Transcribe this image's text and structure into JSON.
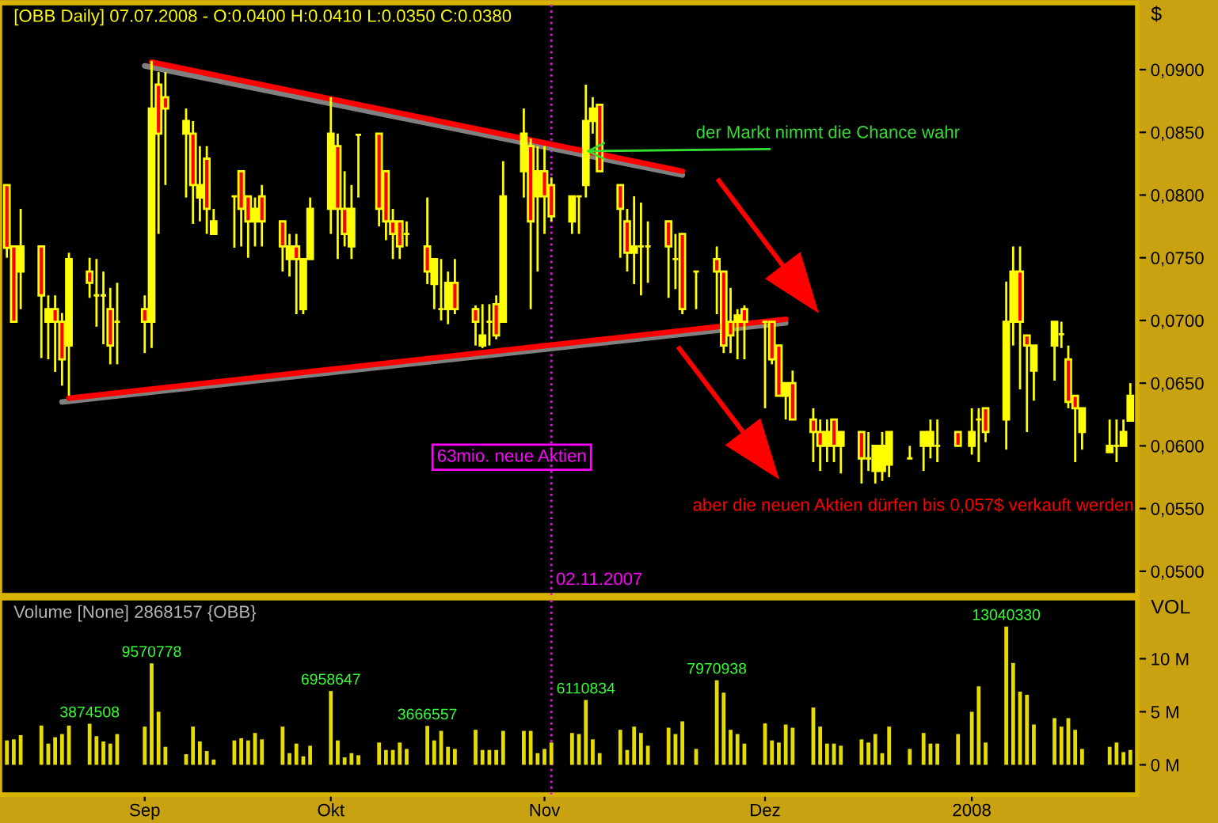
{
  "chart_data": [
    {
      "type": "candlestick",
      "title": "[OBB Daily] 07.07.2008 - O:0.0400 H:0.0410 L:0.0350 C:0.0380",
      "ylabel": "$",
      "x": [
        "2007-08-15",
        "2007-08-16",
        "2007-08-17",
        "2007-08-20",
        "2007-08-21",
        "2007-08-22",
        "2007-08-23",
        "2007-08-24",
        "2007-08-27",
        "2007-08-28",
        "2007-08-29",
        "2007-08-30",
        "2007-08-31",
        "2007-09-04",
        "2007-09-05",
        "2007-09-06",
        "2007-09-07",
        "2007-09-10",
        "2007-09-11",
        "2007-09-12",
        "2007-09-13",
        "2007-09-14",
        "2007-09-17",
        "2007-09-18",
        "2007-09-19",
        "2007-09-20",
        "2007-09-21",
        "2007-09-24",
        "2007-09-25",
        "2007-09-26",
        "2007-09-27",
        "2007-09-28",
        "2007-10-01",
        "2007-10-02",
        "2007-10-03",
        "2007-10-04",
        "2007-10-05",
        "2007-10-08",
        "2007-10-09",
        "2007-10-10",
        "2007-10-11",
        "2007-10-12",
        "2007-10-15",
        "2007-10-16",
        "2007-10-17",
        "2007-10-18",
        "2007-10-19",
        "2007-10-22",
        "2007-10-23",
        "2007-10-24",
        "2007-10-25",
        "2007-10-26",
        "2007-10-29",
        "2007-10-30",
        "2007-10-31",
        "2007-11-01",
        "2007-11-02",
        "2007-11-05",
        "2007-11-06",
        "2007-11-07",
        "2007-11-08",
        "2007-11-09",
        "2007-11-12",
        "2007-11-13",
        "2007-11-14",
        "2007-11-15",
        "2007-11-16",
        "2007-11-19",
        "2007-11-20",
        "2007-11-21",
        "2007-11-23",
        "2007-11-26",
        "2007-11-27",
        "2007-11-28",
        "2007-11-29",
        "2007-11-30",
        "2007-12-03",
        "2007-12-04",
        "2007-12-05",
        "2007-12-06",
        "2007-12-07",
        "2007-12-10",
        "2007-12-11",
        "2007-12-12",
        "2007-12-13",
        "2007-12-14",
        "2007-12-17",
        "2007-12-18",
        "2007-12-19",
        "2007-12-20",
        "2007-12-21",
        "2007-12-24",
        "2007-12-26",
        "2007-12-27",
        "2007-12-28",
        "2007-12-31",
        "2008-01-02",
        "2008-01-03",
        "2008-01-04",
        "2008-01-07",
        "2008-01-08",
        "2008-01-09",
        "2008-01-10",
        "2008-01-11",
        "2008-01-14",
        "2008-01-15",
        "2008-01-16",
        "2008-01-17",
        "2008-01-18",
        "2008-01-22",
        "2008-01-23",
        "2008-01-24",
        "2008-01-25"
      ],
      "ohlc": [
        [
          0.0808,
          0.0808,
          0.075,
          0.0758
        ],
        [
          0.0759,
          0.0759,
          0.0699,
          0.0699
        ],
        [
          0.0739,
          0.0789,
          0.0709,
          0.0759
        ],
        [
          0.0759,
          0.0759,
          0.067,
          0.072
        ],
        [
          0.0699,
          0.072,
          0.0669,
          0.0709
        ],
        [
          0.0709,
          0.072,
          0.0659,
          0.0699
        ],
        [
          0.0699,
          0.0706,
          0.0648,
          0.0669
        ],
        [
          0.068,
          0.0754,
          0.064,
          0.0749
        ],
        [
          0.0739,
          0.075,
          0.0718,
          0.073
        ],
        [
          0.072,
          0.0749,
          0.0695,
          0.072
        ],
        [
          0.072,
          0.0739,
          0.0681,
          0.072
        ],
        [
          0.0709,
          0.0726,
          0.0665,
          0.068
        ],
        [
          0.0699,
          0.073,
          0.0665,
          0.0699
        ],
        [
          0.0709,
          0.072,
          0.0674,
          0.0699
        ],
        [
          0.0699,
          0.0907,
          0.0678,
          0.0869
        ],
        [
          0.0888,
          0.0898,
          0.0769,
          0.0849
        ],
        [
          0.0878,
          0.0898,
          0.0808,
          0.0869
        ],
        [
          0.0849,
          0.0869,
          0.0798,
          0.0859
        ],
        [
          0.0849,
          0.0859,
          0.0777,
          0.0808
        ],
        [
          0.0798,
          0.0839,
          0.0779,
          0.0808
        ],
        [
          0.0829,
          0.0839,
          0.0769,
          0.0789
        ],
        [
          0.0769,
          0.0789,
          0.0769,
          0.0779
        ],
        [
          0.0799,
          0.0799,
          0.0758,
          0.0799
        ],
        [
          0.0819,
          0.0819,
          0.0759,
          0.0789
        ],
        [
          0.0799,
          0.0799,
          0.075,
          0.0779
        ],
        [
          0.0779,
          0.0798,
          0.0759,
          0.0789
        ],
        [
          0.0799,
          0.0808,
          0.0759,
          0.0779
        ],
        [
          0.0779,
          0.0779,
          0.0739,
          0.0759
        ],
        [
          0.0749,
          0.0769,
          0.0735,
          0.0759
        ],
        [
          0.0759,
          0.0769,
          0.0705,
          0.0749
        ],
        [
          0.0709,
          0.0749,
          0.0705,
          0.0749
        ],
        [
          0.0749,
          0.0798,
          0.0749,
          0.0789
        ],
        [
          0.0789,
          0.0878,
          0.0769,
          0.0849
        ],
        [
          0.0839,
          0.0849,
          0.0749,
          0.0789
        ],
        [
          0.0789,
          0.0819,
          0.0759,
          0.0769
        ],
        [
          0.0759,
          0.0808,
          0.0749,
          0.0789
        ],
        [
          0.0848,
          0.0848,
          0.0798,
          0.0848
        ],
        [
          0.0849,
          0.0849,
          0.0775,
          0.0789
        ],
        [
          0.0819,
          0.0819,
          0.0764,
          0.0779
        ],
        [
          0.0779,
          0.0789,
          0.0749,
          0.0769
        ],
        [
          0.0779,
          0.0779,
          0.0749,
          0.0759
        ],
        [
          0.0769,
          0.0779,
          0.0759,
          0.0769
        ],
        [
          0.0759,
          0.0798,
          0.0729,
          0.0739
        ],
        [
          0.0729,
          0.0749,
          0.0709,
          0.0749
        ],
        [
          0.0709,
          0.0749,
          0.07,
          0.0709
        ],
        [
          0.0709,
          0.0739,
          0.0697,
          0.073
        ],
        [
          0.073,
          0.0749,
          0.0705,
          0.0709
        ],
        [
          0.0709,
          0.0712,
          0.068,
          0.0699
        ],
        [
          0.068,
          0.0713,
          0.0678,
          0.0688
        ],
        [
          0.0699,
          0.0713,
          0.068,
          0.0699
        ],
        [
          0.0713,
          0.072,
          0.0685,
          0.0688
        ],
        [
          0.0699,
          0.0827,
          0.0699,
          0.0799
        ],
        [
          0.0819,
          0.0869,
          0.0798,
          0.0849
        ],
        [
          0.0839,
          0.0845,
          0.0709,
          0.0779
        ],
        [
          0.0799,
          0.0839,
          0.0739,
          0.0819
        ],
        [
          0.0819,
          0.0839,
          0.0769,
          0.0799
        ],
        [
          0.0808,
          0.0814,
          0.0779,
          0.0783
        ],
        [
          0.0779,
          0.0799,
          0.0769,
          0.0799
        ],
        [
          0.0799,
          0.0799,
          0.0769,
          0.0799
        ],
        [
          0.0808,
          0.0888,
          0.0798,
          0.0859
        ],
        [
          0.0859,
          0.0878,
          0.0849,
          0.0869
        ],
        [
          0.0872,
          0.0872,
          0.0819,
          0.0819
        ],
        [
          0.0808,
          0.0808,
          0.075,
          0.0789
        ],
        [
          0.0779,
          0.0789,
          0.0739,
          0.0754
        ],
        [
          0.0754,
          0.0799,
          0.0729,
          0.0759
        ],
        [
          0.0759,
          0.0794,
          0.072,
          0.0759
        ],
        [
          0.0759,
          0.0779,
          0.073,
          0.0759
        ],
        [
          0.0779,
          0.0779,
          0.0718,
          0.0759
        ],
        [
          0.0749,
          0.0769,
          0.0725,
          0.0749
        ],
        [
          0.0769,
          0.0769,
          0.0705,
          0.0709
        ],
        [
          0.0739,
          0.0739,
          0.0709,
          0.0739
        ],
        [
          0.0749,
          0.0759,
          0.0705,
          0.0739
        ],
        [
          0.0739,
          0.0739,
          0.0674,
          0.068
        ],
        [
          0.0699,
          0.0726,
          0.0674,
          0.0688
        ],
        [
          0.0699,
          0.0709,
          0.0669,
          0.0704
        ],
        [
          0.0709,
          0.0712,
          0.0669,
          0.0699
        ],
        [
          0.0699,
          0.0699,
          0.063,
          0.0699
        ],
        [
          0.0699,
          0.0699,
          0.0665,
          0.0669
        ],
        [
          0.068,
          0.068,
          0.064,
          0.064
        ],
        [
          0.064,
          0.065,
          0.0621,
          0.065
        ],
        [
          0.065,
          0.066,
          0.0621,
          0.0621
        ],
        [
          0.0621,
          0.063,
          0.0587,
          0.0611
        ],
        [
          0.0611,
          0.0621,
          0.058,
          0.06
        ],
        [
          0.06,
          0.0621,
          0.0587,
          0.0611
        ],
        [
          0.0621,
          0.0621,
          0.0587,
          0.06
        ],
        [
          0.06,
          0.0611,
          0.0578,
          0.0611
        ],
        [
          0.0611,
          0.0611,
          0.057,
          0.059
        ],
        [
          0.059,
          0.0611,
          0.058,
          0.059
        ],
        [
          0.058,
          0.06,
          0.057,
          0.06
        ],
        [
          0.058,
          0.0611,
          0.0572,
          0.06
        ],
        [
          0.0585,
          0.0611,
          0.0575,
          0.0611
        ],
        [
          0.059,
          0.06,
          0.059,
          0.059
        ],
        [
          0.06,
          0.0611,
          0.058,
          0.0611
        ],
        [
          0.06,
          0.0621,
          0.059,
          0.0611
        ],
        [
          0.06,
          0.0621,
          0.0587,
          0.06
        ],
        [
          0.0611,
          0.0611,
          0.06,
          0.06
        ],
        [
          0.06,
          0.063,
          0.0593,
          0.0611
        ],
        [
          0.0621,
          0.063,
          0.0587,
          0.0621
        ],
        [
          0.063,
          0.063,
          0.0603,
          0.0611
        ],
        [
          0.0621,
          0.0731,
          0.0597,
          0.0699
        ],
        [
          0.0699,
          0.0759,
          0.068,
          0.0739
        ],
        [
          0.0739,
          0.0759,
          0.0645,
          0.0699
        ],
        [
          0.0688,
          0.0688,
          0.0611,
          0.068
        ],
        [
          0.066,
          0.068,
          0.0636,
          0.068
        ],
        [
          0.068,
          0.0699,
          0.0652,
          0.0699
        ],
        [
          0.0689,
          0.0699,
          0.0678,
          0.0689
        ],
        [
          0.0669,
          0.068,
          0.063,
          0.0635
        ],
        [
          0.064,
          0.064,
          0.0587,
          0.063
        ],
        [
          0.0611,
          0.063,
          0.0597,
          0.063
        ],
        [
          0.0595,
          0.0621,
          0.0595,
          0.06
        ],
        [
          0.06,
          0.0621,
          0.0587,
          0.06
        ],
        [
          0.06,
          0.0621,
          0.06,
          0.0611
        ],
        [
          0.062,
          0.065,
          0.062,
          0.064
        ]
      ],
      "color": "#ffff00",
      "colors": [
        "#ff0000",
        "#ff0000",
        "#ffff00",
        "#ff0000",
        "#ffff00",
        "#ff0000",
        "#ff0000",
        "#ffff00",
        "#ff0000",
        "#ffff00",
        "#ffff00",
        "#ff0000",
        "#ffff00",
        "#ff0000",
        "#ffff00",
        "#ff0000",
        "#ff0000",
        "#ffff00",
        "#ff0000",
        "#ffff00",
        "#ff0000",
        "#ffff00",
        "#ffff00",
        "#ff0000",
        "#ff0000",
        "#ffff00",
        "#ff0000",
        "#ff0000",
        "#ffff00",
        "#ff0000",
        "#ffff00",
        "#ffff00",
        "#ffff00",
        "#ff0000",
        "#ff0000",
        "#ffff00",
        "#ffff00",
        "#ff0000",
        "#ff0000",
        "#ff0000",
        "#ff0000",
        "#ffff00",
        "#ff0000",
        "#ffff00",
        "#ffff00",
        "#ffff00",
        "#ff0000",
        "#ff0000",
        "#ffff00",
        "#ffff00",
        "#ff0000",
        "#ffff00",
        "#ffff00",
        "#ff0000",
        "#ffff00",
        "#ff0000",
        "#ff0000",
        "#ffff00",
        "#ffff00",
        "#ffff00",
        "#ffff00",
        "#ff0000",
        "#ff0000",
        "#ff0000",
        "#ffff00",
        "#ffff00",
        "#ffff00",
        "#ff0000",
        "#ffff00",
        "#ff0000",
        "#ffff00",
        "#ff0000",
        "#ff0000",
        "#ff0000",
        "#ffff00",
        "#ff0000",
        "#ffff00",
        "#ff0000",
        "#ff0000",
        "#ffff00",
        "#ff0000",
        "#ff0000",
        "#ff0000",
        "#ffff00",
        "#ff0000",
        "#ffff00",
        "#ff0000",
        "#ffff00",
        "#ffff00",
        "#ffff00",
        "#ffff00",
        "#ffff00",
        "#ffff00",
        "#ffff00",
        "#ffff00",
        "#ff0000",
        "#ffff00",
        "#ffff00",
        "#ff0000",
        "#ffff00",
        "#ffff00",
        "#ff0000",
        "#ff0000",
        "#ffff00",
        "#ffff00",
        "#ffff00",
        "#ff0000",
        "#ff0000",
        "#ffff00",
        "#ffff00",
        "#ffff00",
        "#ffff00",
        "#ffff00"
      ],
      "series": [
        {
          "type": "line",
          "x": [
            "2007-09-04",
            "2007-11-21"
          ],
          "values": [
            0.0903,
            0.0816
          ],
          "color": "#808080"
        },
        {
          "type": "line",
          "x": [
            "2007-08-23",
            "2007-12-06"
          ],
          "values": [
            0.0635,
            0.0698
          ],
          "color": "#808080"
        },
        {
          "type": "line",
          "x": [
            "2007-09-05",
            "2007-11-21"
          ],
          "values": [
            0.0906,
            0.0819
          ],
          "color": "#ff0000"
        },
        {
          "type": "line",
          "x": [
            "2007-08-24",
            "2007-12-06"
          ],
          "values": [
            0.0638,
            0.0701
          ],
          "color": "#ff0000"
        }
      ],
      "xlim": [
        "2007-08-14",
        "2008-01-26"
      ],
      "ylim": [
        0.0481,
        0.0953
      ],
      "yticks": [
        {
          "value": 0.05,
          "label": "0,0500"
        },
        {
          "value": 0.055,
          "label": "0,0550"
        },
        {
          "value": 0.06,
          "label": "0,0600"
        },
        {
          "value": 0.065,
          "label": "0,0650"
        },
        {
          "value": 0.07,
          "label": "0,0700"
        },
        {
          "value": 0.075,
          "label": "0,0750"
        },
        {
          "value": 0.08,
          "label": "0,0800"
        },
        {
          "value": 0.085,
          "label": "0,0850"
        },
        {
          "value": 0.09,
          "label": "0,0900"
        }
      ],
      "tick_labels": "y",
      "ref_lines": [
        {
          "axis": "x",
          "value": "2007-11-02",
          "label": "02.11.2007",
          "color": "#ff00ff",
          "line_style": "dotted"
        }
      ],
      "annotations": [
        {
          "text": "der Markt nimmt die Chance wahr",
          "x": "2007-11-07",
          "y": 0.0835
        },
        "63mio. neue Aktien",
        "aber die neuen Aktien dürfen bis 0,057$ verkauft werden"
      ]
    },
    {
      "type": "bar",
      "title": "Volume [None] 2868157 {OBB}",
      "ylabel": "VOL",
      "x": [
        "2007-08-15",
        "2007-08-16",
        "2007-08-17",
        "2007-08-20",
        "2007-08-21",
        "2007-08-22",
        "2007-08-23",
        "2007-08-24",
        "2007-08-27",
        "2007-08-28",
        "2007-08-29",
        "2007-08-30",
        "2007-08-31",
        "2007-09-04",
        "2007-09-05",
        "2007-09-06",
        "2007-09-07",
        "2007-09-10",
        "2007-09-11",
        "2007-09-12",
        "2007-09-13",
        "2007-09-14",
        "2007-09-17",
        "2007-09-18",
        "2007-09-19",
        "2007-09-20",
        "2007-09-21",
        "2007-09-24",
        "2007-09-25",
        "2007-09-26",
        "2007-09-27",
        "2007-09-28",
        "2007-10-01",
        "2007-10-02",
        "2007-10-03",
        "2007-10-04",
        "2007-10-05",
        "2007-10-08",
        "2007-10-09",
        "2007-10-10",
        "2007-10-11",
        "2007-10-12",
        "2007-10-15",
        "2007-10-16",
        "2007-10-17",
        "2007-10-18",
        "2007-10-19",
        "2007-10-22",
        "2007-10-23",
        "2007-10-24",
        "2007-10-25",
        "2007-10-26",
        "2007-10-29",
        "2007-10-30",
        "2007-10-31",
        "2007-11-01",
        "2007-11-02",
        "2007-11-05",
        "2007-11-06",
        "2007-11-07",
        "2007-11-08",
        "2007-11-09",
        "2007-11-12",
        "2007-11-13",
        "2007-11-14",
        "2007-11-15",
        "2007-11-16",
        "2007-11-19",
        "2007-11-20",
        "2007-11-21",
        "2007-11-23",
        "2007-11-26",
        "2007-11-27",
        "2007-11-28",
        "2007-11-29",
        "2007-11-30",
        "2007-12-03",
        "2007-12-04",
        "2007-12-05",
        "2007-12-06",
        "2007-12-07",
        "2007-12-10",
        "2007-12-11",
        "2007-12-12",
        "2007-12-13",
        "2007-12-14",
        "2007-12-17",
        "2007-12-18",
        "2007-12-19",
        "2007-12-20",
        "2007-12-21",
        "2007-12-24",
        "2007-12-26",
        "2007-12-27",
        "2007-12-28",
        "2007-12-31",
        "2008-01-02",
        "2008-01-03",
        "2008-01-04",
        "2008-01-07",
        "2008-01-08",
        "2008-01-09",
        "2008-01-10",
        "2008-01-11",
        "2008-01-14",
        "2008-01-15",
        "2008-01-16",
        "2008-01-17",
        "2008-01-18",
        "2008-01-22",
        "2008-01-23",
        "2008-01-24",
        "2008-01-25"
      ],
      "values": [
        2300000,
        2400000,
        2800000,
        3700000,
        2000000,
        2600000,
        2900000,
        3700000,
        3874508,
        2700000,
        2200000,
        2000000,
        2900000,
        3600000,
        9570778,
        5000000,
        1700000,
        1000000,
        3600000,
        2200000,
        1300000,
        500000,
        2300000,
        2500000,
        2300000,
        3000000,
        2400000,
        3600000,
        1100000,
        2000000,
        800000,
        1800000,
        6958647,
        2300000,
        700000,
        1100000,
        900000,
        2100000,
        1400000,
        1400000,
        2100000,
        1500000,
        3666557,
        2300000,
        3200000,
        1700000,
        1500000,
        3300000,
        1400000,
        1400000,
        1400000,
        3200000,
        3200000,
        3200000,
        1100000,
        1500000,
        2100000,
        3000000,
        2900000,
        6110834,
        2400000,
        1100000,
        3300000,
        1400000,
        3600000,
        3000000,
        1800000,
        3500000,
        2900000,
        4100000,
        1500000,
        7970938,
        6800000,
        3300000,
        2900000,
        2000000,
        3900000,
        2300000,
        2100000,
        3800000,
        3500000,
        5400000,
        3600000,
        2000000,
        2000000,
        1800000,
        2400000,
        2100000,
        2900000,
        1100000,
        3600000,
        1500000,
        3000000,
        2000000,
        2000000,
        2900000,
        5000000,
        7400000,
        2100000,
        13040330,
        9600000,
        6900000,
        6600000,
        3800000,
        4400000,
        3600000,
        4400000,
        3300000,
        1500000,
        1700000,
        2100000,
        1200000,
        1400000
      ],
      "value_labels": [
        null,
        null,
        null,
        null,
        null,
        null,
        null,
        null,
        "3874508",
        null,
        null,
        null,
        null,
        null,
        "9570778",
        null,
        null,
        null,
        null,
        null,
        null,
        null,
        null,
        null,
        null,
        null,
        null,
        null,
        null,
        null,
        null,
        null,
        "6958647",
        null,
        null,
        null,
        null,
        null,
        null,
        null,
        null,
        null,
        "3666557",
        null,
        null,
        null,
        null,
        null,
        null,
        null,
        null,
        null,
        null,
        null,
        null,
        null,
        null,
        null,
        null,
        "6110834",
        null,
        null,
        null,
        null,
        null,
        null,
        null,
        null,
        null,
        null,
        null,
        "7970938",
        null,
        null,
        null,
        null,
        null,
        null,
        null,
        null,
        null,
        null,
        null,
        null,
        null,
        null,
        null,
        null,
        null,
        null,
        null,
        null,
        null,
        null,
        null,
        null,
        null,
        null,
        null,
        "13040330",
        null,
        null,
        null,
        null,
        null,
        null,
        null,
        null,
        null,
        null,
        null,
        null,
        null
      ],
      "color": "#e6dc00",
      "xlim": [
        "2007-08-14",
        "2008-01-26"
      ],
      "ylim": [
        -2800000,
        15700000
      ],
      "xticks": [
        {
          "value": "2007-09-04",
          "label": "Sep"
        },
        {
          "value": "2007-10-01",
          "label": "Okt"
        },
        {
          "value": "2007-11-01",
          "label": "Nov"
        },
        {
          "value": "2007-12-03",
          "label": "Dez"
        },
        {
          "value": "2008-01-02",
          "label": "2008"
        }
      ],
      "yticks": [
        {
          "value": 0,
          "label": "0 M"
        },
        {
          "value": 5000000,
          "label": "5 M"
        },
        {
          "value": 10000000,
          "label": "10 M"
        }
      ],
      "ref_lines": [
        {
          "axis": "x",
          "value": "2007-11-02",
          "color": "#ff00ff",
          "line_style": "dotted"
        }
      ]
    }
  ]
}
